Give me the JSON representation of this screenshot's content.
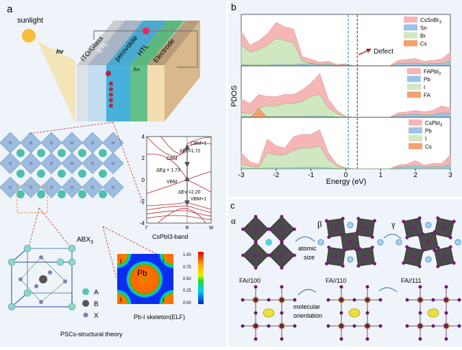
{
  "panel_a": {
    "label": "a",
    "sunlight": "sunlight",
    "hv": "hv",
    "layers": [
      "ITO/Glass",
      "ETL",
      "perovskite",
      "HTL",
      "Electrode"
    ],
    "electron": "e",
    "hole": "h+",
    "abx3": "ABX",
    "abx3_sub": "3",
    "band_title": "CsPbI3-band",
    "band_yticks": [
      "4",
      "2",
      "0",
      "-2",
      "-4"
    ],
    "band_xticks": [
      "Γ",
      "R",
      "M"
    ],
    "band_labels": {
      "cbm1": "CBM+1",
      "dec": "ΔEc=1.72",
      "cbm": "CBM",
      "deg": "ΔEg = 1.73",
      "vbm": "VBM",
      "dev": "ΔEv =2.20",
      "vbm1": "VBM+1"
    },
    "legend": [
      {
        "label": "A",
        "color": "#5fc2b5"
      },
      {
        "label": "B",
        "color": "#555555"
      },
      {
        "label": "X",
        "color": "#8088b8"
      }
    ],
    "elf_title": "Pb-I skeleton(ELF)",
    "elf_pb": "Pb",
    "elf_i": "I",
    "elf_ticks": [
      "1.00",
      "0.75",
      "0.50",
      "0.25",
      "0.00"
    ],
    "footer": "PSCs-structural theory"
  },
  "panel_b": {
    "label": "b",
    "defect": "Defect",
    "legends": [
      {
        "total": "CsSnBr",
        "sub": "3",
        "items": [
          "Sn",
          "Br",
          "Cs"
        ]
      },
      {
        "total": "FAPbI",
        "sub": "3",
        "items": [
          "Pb",
          "I",
          "FA"
        ]
      },
      {
        "total": "CsPbI",
        "sub": "3",
        "items": [
          "Pb",
          "I",
          "Cs"
        ]
      }
    ]
  },
  "panel_c": {
    "label": "c",
    "phases": [
      "α",
      "β",
      "γ"
    ],
    "captions": [
      "FA//100",
      "FA//110",
      "FA//111"
    ],
    "arrow1": [
      "atomic",
      "size"
    ],
    "arrow2": [
      "molecular",
      "orientation"
    ]
  },
  "chart_data": {
    "type": "area",
    "xlabel": "Energy (eV)",
    "ylabel": "PDOS",
    "xlim": [
      -3,
      3
    ],
    "xticks": [
      "-3",
      "-2",
      "-1",
      "0",
      "1",
      "2",
      "3"
    ],
    "x": [
      -3,
      -2.75,
      -2.5,
      -2.25,
      -2,
      -1.75,
      -1.5,
      -1.25,
      -1,
      -0.75,
      -0.5,
      -0.25,
      0,
      0.25,
      0.5,
      0.75,
      1,
      1.25,
      1.5,
      1.75,
      2,
      2.25,
      2.5,
      2.75,
      3
    ],
    "vlines": [
      {
        "x": 0.07,
        "color": "#3a9ad9"
      },
      {
        "x": 0.33,
        "color": "#c0282d"
      }
    ],
    "colors": {
      "total": "#f6b6b6",
      "B": "#9cc3e8",
      "X": "#cfe8c2",
      "A": "#f4a070"
    },
    "subplots": [
      {
        "name": "CsSnBr3",
        "total": [
          0.75,
          0.45,
          0.55,
          0.7,
          0.95,
          0.85,
          0.8,
          0.2,
          0.15,
          0.08,
          0.1,
          0.03,
          0.05,
          0,
          0,
          0,
          0,
          0,
          0.12,
          0.14,
          0.16,
          0.1,
          0.12,
          0.15,
          0.3
        ],
        "B": [
          0.03,
          0.02,
          0.02,
          0.02,
          0.03,
          0.03,
          0.03,
          0.04,
          0.05,
          0.03,
          0.03,
          0.01,
          0.02,
          0,
          0,
          0,
          0,
          0,
          0.05,
          0.06,
          0.06,
          0.04,
          0.05,
          0.06,
          0.1
        ],
        "X": [
          0.45,
          0.3,
          0.35,
          0.45,
          0.6,
          0.55,
          0.5,
          0.1,
          0.06,
          0.03,
          0.04,
          0.01,
          0.02,
          0,
          0,
          0,
          0,
          0,
          0.03,
          0.04,
          0.04,
          0.03,
          0.03,
          0.04,
          0.06
        ],
        "A": [
          0,
          0,
          0,
          0,
          0,
          0,
          0,
          0,
          0,
          0,
          0,
          0,
          0,
          0,
          0,
          0,
          0,
          0,
          0,
          0,
          0,
          0,
          0,
          0,
          0
        ]
      },
      {
        "name": "FAPbI3",
        "total": [
          0.4,
          0.3,
          0.5,
          0.45,
          0.45,
          0.5,
          0.5,
          0.6,
          0.75,
          0.95,
          0.4,
          0.15,
          0.02,
          0,
          0,
          0,
          0,
          0,
          0.1,
          0.12,
          0.15,
          0.12,
          0.15,
          0.25,
          0.2
        ],
        "B": [
          0.02,
          0.02,
          0.02,
          0.02,
          0.02,
          0.02,
          0.02,
          0.02,
          0.03,
          0.03,
          0.02,
          0.01,
          0,
          0,
          0,
          0,
          0,
          0,
          0.05,
          0.06,
          0.07,
          0.05,
          0.06,
          0.1,
          0.08
        ],
        "X": [
          0.1,
          0.08,
          0.2,
          0.25,
          0.25,
          0.3,
          0.3,
          0.35,
          0.45,
          0.5,
          0.2,
          0.08,
          0.01,
          0,
          0,
          0,
          0,
          0,
          0.02,
          0.02,
          0.03,
          0.02,
          0.03,
          0.04,
          0.03
        ],
        "A": [
          0,
          0,
          0.2,
          0,
          0,
          0,
          0,
          0,
          0,
          0,
          0,
          0,
          0,
          0,
          0,
          0,
          0,
          0,
          0,
          0,
          0,
          0,
          0,
          0,
          0
        ]
      },
      {
        "name": "CsPbI3",
        "total": [
          0.35,
          0.15,
          0.1,
          0.65,
          0.5,
          0.45,
          0.7,
          0.75,
          0.75,
          0.85,
          0.35,
          0.1,
          0.02,
          0,
          0,
          0,
          0,
          0,
          0.08,
          0.1,
          0.18,
          0.08,
          0.12,
          0.12,
          0.3
        ],
        "B": [
          0.02,
          0.01,
          0.01,
          0.02,
          0.02,
          0.02,
          0.02,
          0.03,
          0.03,
          0.03,
          0.02,
          0.01,
          0,
          0,
          0,
          0,
          0,
          0,
          0.04,
          0.05,
          0.07,
          0.04,
          0.05,
          0.05,
          0.1
        ],
        "X": [
          0.1,
          0.05,
          0.03,
          0.35,
          0.3,
          0.3,
          0.4,
          0.45,
          0.45,
          0.5,
          0.2,
          0.05,
          0.01,
          0,
          0,
          0,
          0,
          0,
          0.02,
          0.02,
          0.03,
          0.02,
          0.02,
          0.02,
          0.05
        ],
        "A": [
          0,
          0,
          0,
          0,
          0,
          0,
          0,
          0,
          0,
          0,
          0,
          0,
          0,
          0,
          0,
          0,
          0,
          0,
          0,
          0,
          0,
          0,
          0,
          0,
          0
        ]
      }
    ]
  }
}
